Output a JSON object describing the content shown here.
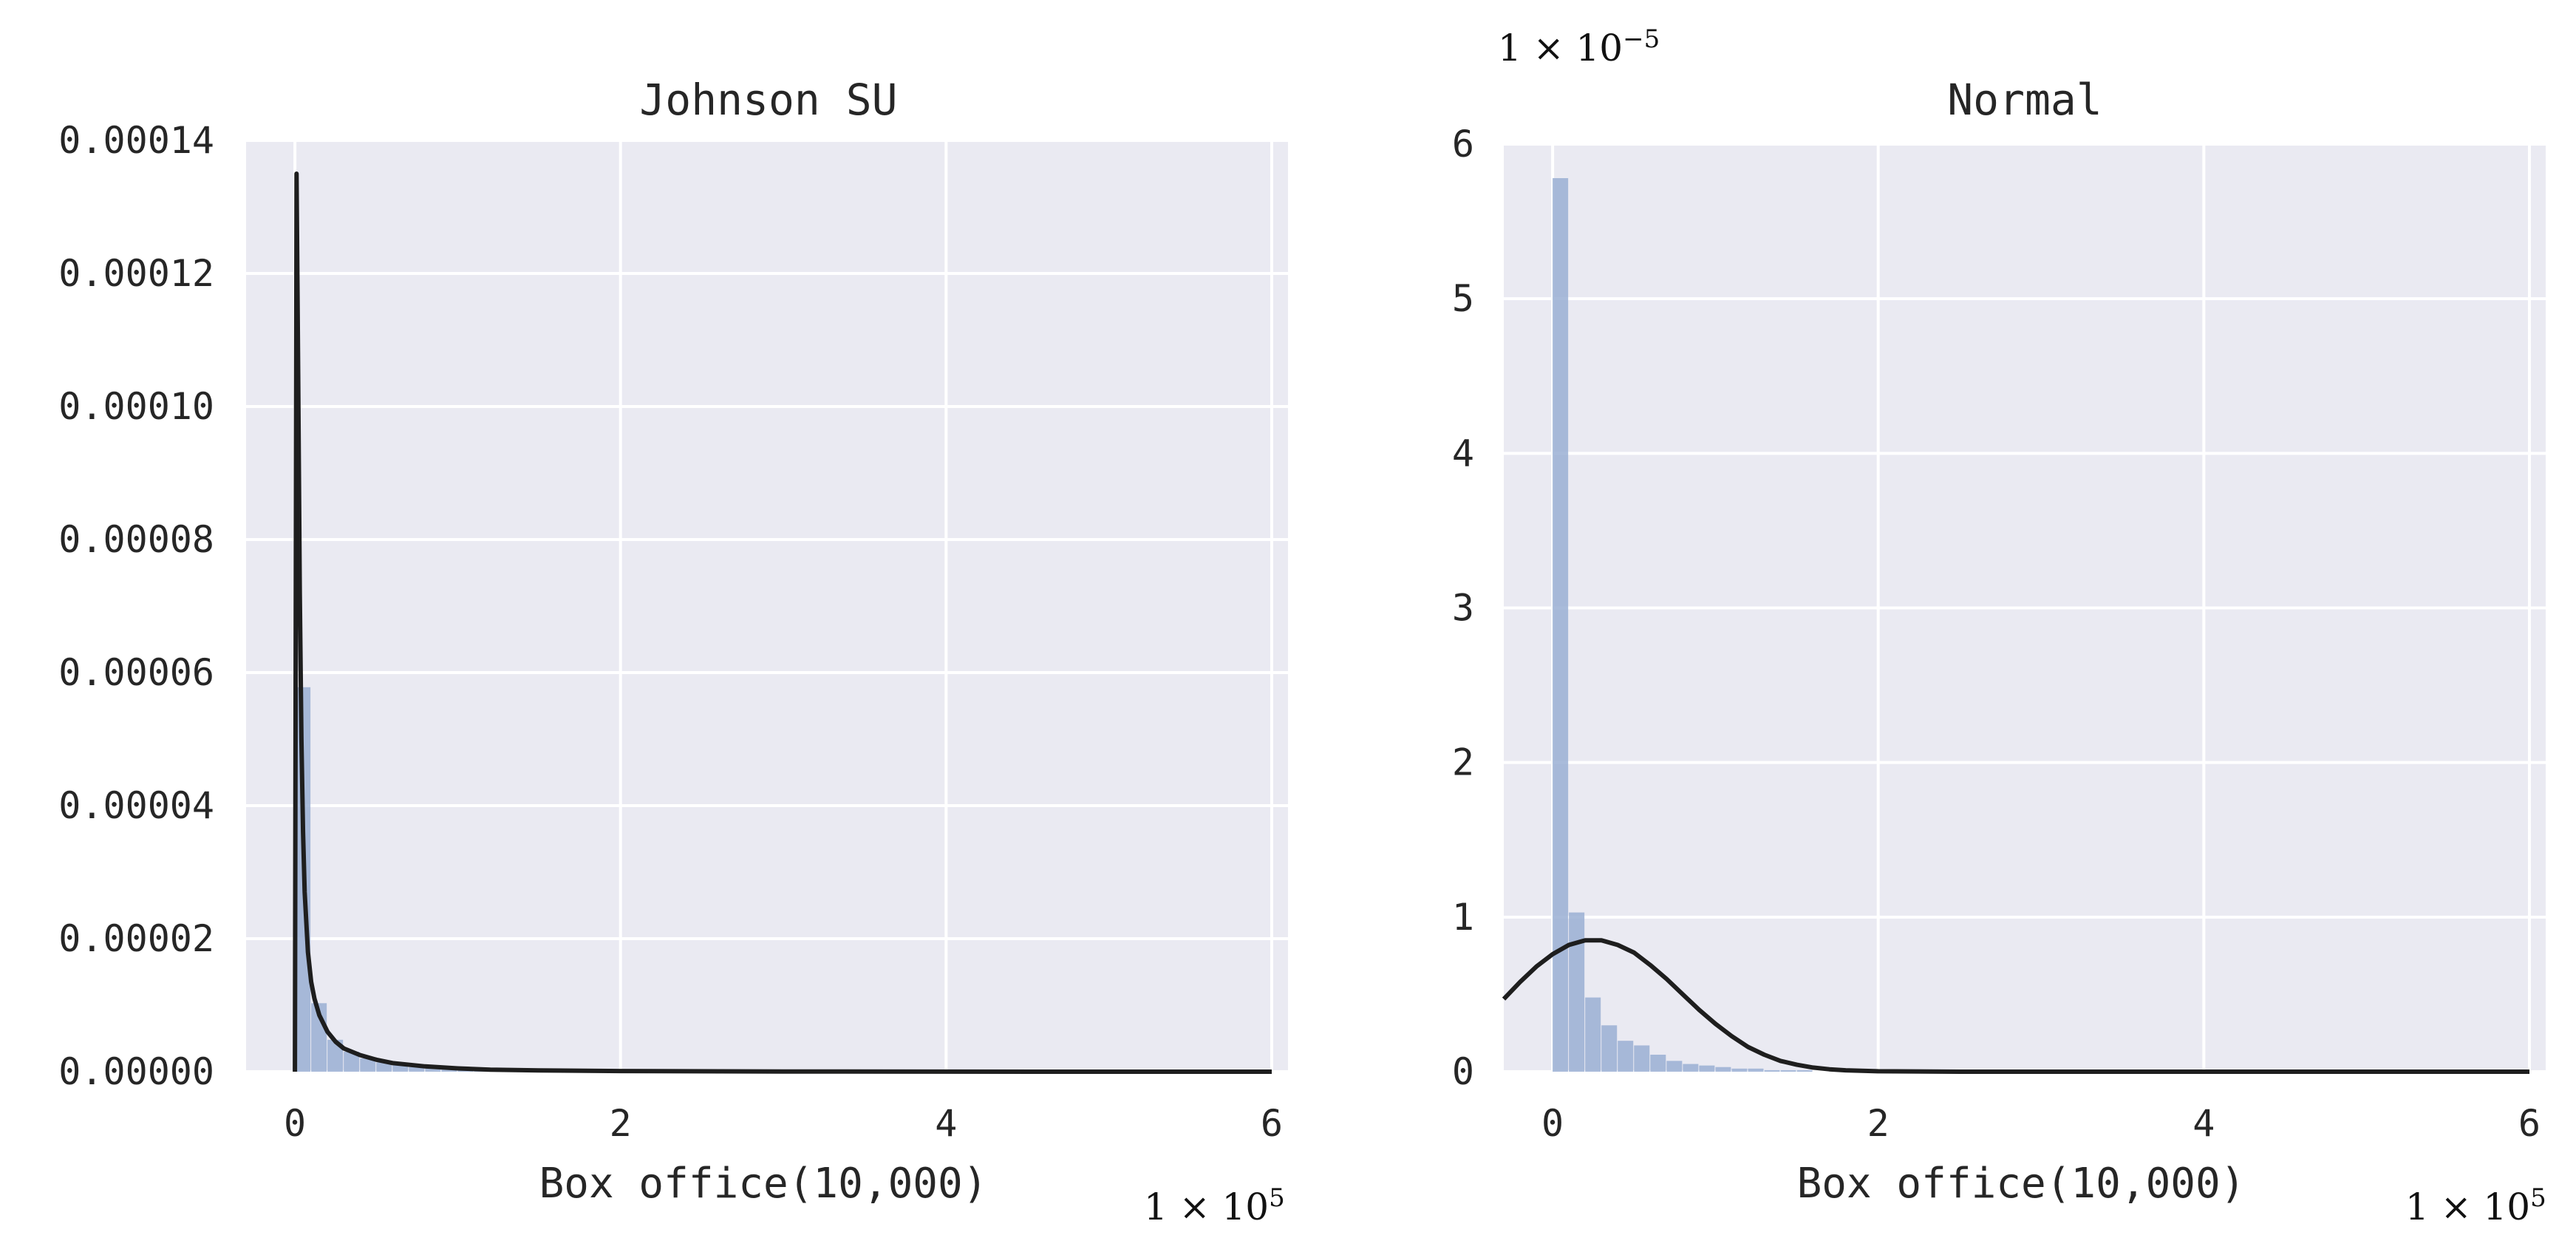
{
  "colors": {
    "plot_background": "#eaeaf2",
    "bar": "#9aafd4",
    "curve": "#1e1e1e",
    "grid": "#ffffff"
  },
  "chart_data": [
    {
      "type": "bar",
      "title": "Johnson SU",
      "xlabel": "Box office(10,000)",
      "ylabel": "",
      "x_multiplier_label": "1 × 10",
      "x_multiplier_exp": "5",
      "xlim": [
        -0.3,
        6.1
      ],
      "ylim": [
        0,
        0.00014
      ],
      "xticks": [
        0,
        2,
        4,
        6
      ],
      "xtick_labels": [
        "0",
        "2",
        "4",
        "6"
      ],
      "yticks": [
        0,
        2e-05,
        4e-05,
        6e-05,
        8e-05,
        0.0001,
        0.00012,
        0.00014
      ],
      "ytick_labels": [
        "0.00000",
        "0.00002",
        "0.00004",
        "0.00006",
        "0.00008",
        "0.00010",
        "0.00012",
        "0.00014"
      ],
      "grid": true,
      "histogram": {
        "bin_edges": [
          0,
          0.1,
          0.2,
          0.3,
          0.4,
          0.5,
          0.6,
          0.7,
          0.8,
          0.9,
          1.0,
          1.1,
          1.2,
          1.3,
          1.4,
          1.5,
          1.6
        ],
        "values": [
          5.78e-05,
          1.03e-05,
          4.8e-06,
          3e-06,
          2e-06,
          1.4e-06,
          1e-06,
          7e-07,
          5e-07,
          4e-07,
          3e-07,
          2e-07,
          2e-07,
          1e-07,
          1e-07,
          1e-07
        ]
      },
      "fit_curve": {
        "name": "Johnson SU",
        "x": [
          0,
          0.01,
          0.02,
          0.03,
          0.04,
          0.05,
          0.06,
          0.08,
          0.1,
          0.12,
          0.15,
          0.2,
          0.25,
          0.3,
          0.4,
          0.5,
          0.6,
          0.8,
          1.0,
          1.2,
          1.5,
          2.0,
          3.0,
          4.0,
          5.0,
          6.0
        ],
        "y": [
          0,
          0.000135,
          0.000105,
          7.2e-05,
          5e-05,
          3.6e-05,
          2.7e-05,
          1.8e-05,
          1.35e-05,
          1.1e-05,
          8.5e-06,
          6e-06,
          4.5e-06,
          3.5e-06,
          2.5e-06,
          1.8e-06,
          1.3e-06,
          8e-07,
          5e-07,
          3e-07,
          2e-07,
          1e-07,
          3e-08,
          1e-08,
          0,
          0
        ]
      }
    },
    {
      "type": "bar",
      "title": "Normal",
      "xlabel": "Box office(10,000)",
      "ylabel": "",
      "y_multiplier_label": "1 × 10",
      "y_multiplier_exp": "−5",
      "x_multiplier_label": "1 × 10",
      "x_multiplier_exp": "5",
      "xlim": [
        -0.3,
        6.1
      ],
      "ylim": [
        0,
        6
      ],
      "xticks": [
        0,
        2,
        4,
        6
      ],
      "xtick_labels": [
        "0",
        "2",
        "4",
        "6"
      ],
      "yticks": [
        0,
        1,
        2,
        3,
        4,
        5,
        6
      ],
      "ytick_labels": [
        "0",
        "1",
        "2",
        "3",
        "4",
        "5",
        "6"
      ],
      "grid": true,
      "histogram": {
        "bin_edges": [
          0,
          0.1,
          0.2,
          0.3,
          0.4,
          0.5,
          0.6,
          0.7,
          0.8,
          0.9,
          1.0,
          1.1,
          1.2,
          1.3,
          1.4,
          1.5,
          1.6
        ],
        "values": [
          5.78,
          1.03,
          0.48,
          0.3,
          0.2,
          0.17,
          0.11,
          0.07,
          0.05,
          0.04,
          0.03,
          0.02,
          0.02,
          0.01,
          0.01,
          0.01
        ]
      },
      "fit_curve": {
        "name": "Normal",
        "x": [
          -0.3,
          -0.2,
          -0.1,
          0,
          0.1,
          0.2,
          0.3,
          0.4,
          0.5,
          0.6,
          0.7,
          0.8,
          0.9,
          1.0,
          1.1,
          1.2,
          1.3,
          1.4,
          1.5,
          1.6,
          1.7,
          1.8,
          2.0,
          2.5,
          3.0,
          4.0,
          5.0,
          6.0
        ],
        "y": [
          0.47,
          0.58,
          0.68,
          0.76,
          0.82,
          0.85,
          0.85,
          0.82,
          0.77,
          0.69,
          0.6,
          0.5,
          0.4,
          0.31,
          0.23,
          0.16,
          0.11,
          0.07,
          0.045,
          0.027,
          0.016,
          0.009,
          0.003,
          0.0001,
          0,
          0,
          0,
          0
        ]
      }
    }
  ]
}
